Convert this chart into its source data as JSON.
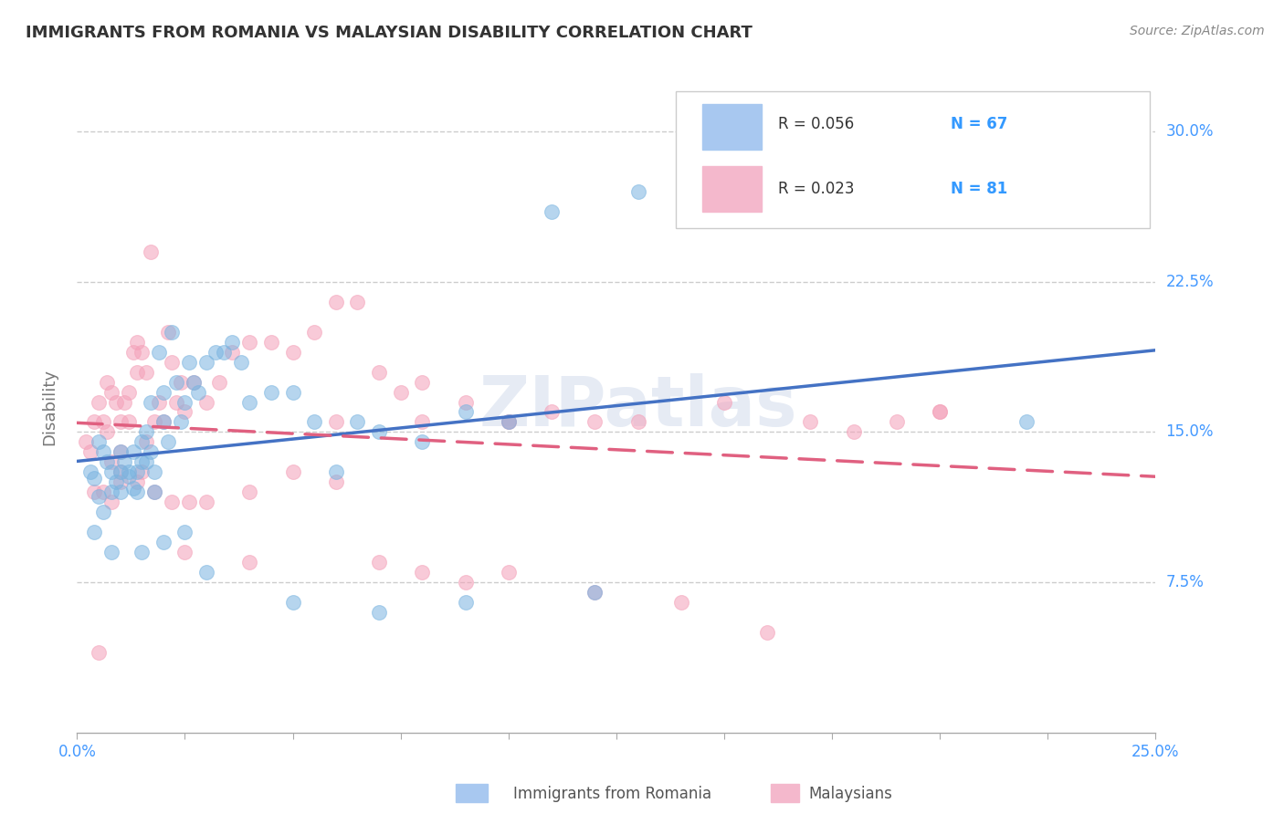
{
  "title": "IMMIGRANTS FROM ROMANIA VS MALAYSIAN DISABILITY CORRELATION CHART",
  "source": "Source: ZipAtlas.com",
  "ylabel_label": "Disability",
  "blue_color": "#7ab4e0",
  "pink_color": "#f4a0b8",
  "blue_line_color": "#4472c4",
  "pink_line_color": "#e06080",
  "watermark": "ZIPatlas",
  "blue_R": "0.056",
  "blue_N": 67,
  "pink_R": "0.023",
  "pink_N": 81,
  "blue_scatter_x": [
    0.003,
    0.004,
    0.005,
    0.005,
    0.006,
    0.007,
    0.008,
    0.008,
    0.009,
    0.01,
    0.01,
    0.011,
    0.012,
    0.012,
    0.013,
    0.013,
    0.014,
    0.014,
    0.015,
    0.015,
    0.016,
    0.016,
    0.017,
    0.017,
    0.018,
    0.018,
    0.019,
    0.02,
    0.02,
    0.021,
    0.022,
    0.023,
    0.024,
    0.025,
    0.026,
    0.027,
    0.028,
    0.03,
    0.032,
    0.034,
    0.036,
    0.038,
    0.04,
    0.045,
    0.05,
    0.055,
    0.06,
    0.065,
    0.07,
    0.08,
    0.09,
    0.1,
    0.11,
    0.13,
    0.22,
    0.004,
    0.006,
    0.008,
    0.01,
    0.015,
    0.02,
    0.025,
    0.03,
    0.05,
    0.07,
    0.09,
    0.12
  ],
  "blue_scatter_y": [
    0.13,
    0.127,
    0.145,
    0.118,
    0.14,
    0.135,
    0.13,
    0.12,
    0.125,
    0.14,
    0.13,
    0.135,
    0.128,
    0.13,
    0.122,
    0.14,
    0.13,
    0.12,
    0.145,
    0.135,
    0.15,
    0.135,
    0.165,
    0.14,
    0.13,
    0.12,
    0.19,
    0.17,
    0.155,
    0.145,
    0.2,
    0.175,
    0.155,
    0.165,
    0.185,
    0.175,
    0.17,
    0.185,
    0.19,
    0.19,
    0.195,
    0.185,
    0.165,
    0.17,
    0.17,
    0.155,
    0.13,
    0.155,
    0.15,
    0.145,
    0.16,
    0.155,
    0.26,
    0.27,
    0.155,
    0.1,
    0.11,
    0.09,
    0.12,
    0.09,
    0.095,
    0.1,
    0.08,
    0.065,
    0.06,
    0.065,
    0.07
  ],
  "pink_scatter_x": [
    0.002,
    0.003,
    0.004,
    0.005,
    0.006,
    0.007,
    0.007,
    0.008,
    0.008,
    0.009,
    0.01,
    0.01,
    0.011,
    0.012,
    0.012,
    0.013,
    0.014,
    0.014,
    0.015,
    0.016,
    0.016,
    0.017,
    0.018,
    0.019,
    0.02,
    0.021,
    0.022,
    0.023,
    0.024,
    0.025,
    0.027,
    0.03,
    0.033,
    0.036,
    0.04,
    0.045,
    0.05,
    0.055,
    0.06,
    0.065,
    0.07,
    0.075,
    0.08,
    0.09,
    0.1,
    0.11,
    0.13,
    0.15,
    0.17,
    0.19,
    0.2,
    0.004,
    0.006,
    0.008,
    0.01,
    0.014,
    0.018,
    0.022,
    0.026,
    0.03,
    0.04,
    0.05,
    0.06,
    0.07,
    0.08,
    0.09,
    0.1,
    0.12,
    0.14,
    0.16,
    0.18,
    0.2,
    0.12,
    0.1,
    0.08,
    0.06,
    0.04,
    0.025,
    0.015,
    0.01,
    0.005
  ],
  "pink_scatter_y": [
    0.145,
    0.14,
    0.155,
    0.165,
    0.155,
    0.15,
    0.175,
    0.17,
    0.135,
    0.165,
    0.155,
    0.14,
    0.165,
    0.155,
    0.17,
    0.19,
    0.18,
    0.195,
    0.19,
    0.18,
    0.145,
    0.24,
    0.155,
    0.165,
    0.155,
    0.2,
    0.185,
    0.165,
    0.175,
    0.16,
    0.175,
    0.165,
    0.175,
    0.19,
    0.195,
    0.195,
    0.19,
    0.2,
    0.215,
    0.215,
    0.18,
    0.17,
    0.175,
    0.165,
    0.155,
    0.16,
    0.155,
    0.165,
    0.155,
    0.155,
    0.16,
    0.12,
    0.12,
    0.115,
    0.125,
    0.125,
    0.12,
    0.115,
    0.115,
    0.115,
    0.12,
    0.13,
    0.125,
    0.085,
    0.08,
    0.075,
    0.08,
    0.07,
    0.065,
    0.05,
    0.15,
    0.16,
    0.155,
    0.155,
    0.155,
    0.155,
    0.085,
    0.09,
    0.13,
    0.13,
    0.04
  ],
  "xmin": 0.0,
  "xmax": 0.25,
  "ymin": 0.0,
  "ymax": 0.325,
  "grid_color": "#cccccc",
  "background_color": "#ffffff",
  "tick_color": "#4499ff",
  "ylabel_color": "#777777",
  "title_color": "#333333",
  "source_color": "#888888"
}
